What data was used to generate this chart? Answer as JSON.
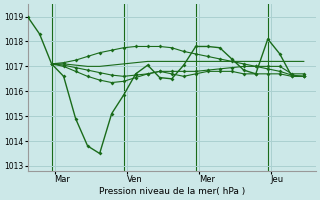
{
  "bg_color": "#cce8e8",
  "grid_color": "#aad0d0",
  "line_color": "#1a6b1a",
  "marker_color": "#1a6b1a",
  "xlabel": "Pression niveau de la mer( hPa )",
  "ylim": [
    1012.8,
    1019.5
  ],
  "yticks": [
    1013,
    1014,
    1015,
    1016,
    1017,
    1018,
    1019
  ],
  "day_labels": [
    "Mar",
    "Ven",
    "Mer",
    "Jeu"
  ],
  "vline_x": [
    8,
    32,
    56,
    80
  ],
  "total_points": 96,
  "series": [
    {
      "x": [
        0,
        4,
        8,
        12,
        16,
        20,
        24,
        28,
        32,
        36,
        40,
        44,
        48,
        52,
        56,
        60,
        64,
        68,
        72,
        76,
        80,
        84,
        88,
        92
      ],
      "y": [
        1019.0,
        1018.3,
        1017.1,
        1016.6,
        1014.9,
        1013.8,
        1013.5,
        1015.1,
        1015.85,
        1016.7,
        1017.05,
        1016.55,
        1016.5,
        1017.05,
        1017.8,
        1017.8,
        1017.75,
        1017.3,
        1016.85,
        1016.7,
        1018.1,
        1017.5,
        1016.6,
        1016.6
      ],
      "has_markers": true,
      "lw": 1.0
    },
    {
      "x": [
        8,
        12,
        16,
        20,
        24,
        28,
        32,
        36,
        40,
        44,
        48,
        52,
        56,
        60,
        64,
        68,
        72,
        76,
        80,
        84,
        88,
        92
      ],
      "y": [
        1017.1,
        1017.1,
        1017.05,
        1017.0,
        1017.0,
        1017.05,
        1017.1,
        1017.15,
        1017.2,
        1017.2,
        1017.2,
        1017.2,
        1017.2,
        1017.2,
        1017.2,
        1017.2,
        1017.2,
        1017.2,
        1017.2,
        1017.2,
        1017.2,
        1017.2
      ],
      "has_markers": false,
      "lw": 0.8
    },
    {
      "x": [
        8,
        12,
        16,
        20,
        24,
        28,
        32,
        36,
        40,
        44,
        48,
        52,
        56,
        60,
        64,
        68,
        72,
        76,
        80,
        84,
        88,
        92
      ],
      "y": [
        1017.1,
        1017.05,
        1016.95,
        1016.85,
        1016.75,
        1016.65,
        1016.6,
        1016.65,
        1016.7,
        1016.8,
        1016.8,
        1016.8,
        1016.8,
        1016.85,
        1016.9,
        1016.95,
        1017.0,
        1017.0,
        1017.0,
        1017.0,
        1016.7,
        1016.7
      ],
      "has_markers": true,
      "lw": 0.8
    },
    {
      "x": [
        8,
        12,
        16,
        20,
        24,
        28,
        32,
        36,
        40,
        44,
        48,
        52,
        56,
        60,
        64,
        68,
        72,
        76,
        80,
        84,
        88,
        92
      ],
      "y": [
        1017.1,
        1017.0,
        1016.8,
        1016.6,
        1016.45,
        1016.35,
        1016.4,
        1016.55,
        1016.7,
        1016.8,
        1016.7,
        1016.6,
        1016.7,
        1016.8,
        1016.8,
        1016.8,
        1016.7,
        1016.7,
        1016.7,
        1016.7,
        1016.6,
        1016.6
      ],
      "has_markers": true,
      "lw": 0.8
    },
    {
      "x": [
        8,
        12,
        16,
        20,
        24,
        28,
        32,
        36,
        40,
        44,
        48,
        52,
        56,
        60,
        64,
        68,
        72,
        76,
        80,
        84,
        88,
        92
      ],
      "y": [
        1017.1,
        1017.15,
        1017.25,
        1017.4,
        1017.55,
        1017.65,
        1017.75,
        1017.8,
        1017.8,
        1017.8,
        1017.75,
        1017.6,
        1017.5,
        1017.4,
        1017.3,
        1017.2,
        1017.1,
        1017.0,
        1016.9,
        1016.8,
        1016.65,
        1016.6
      ],
      "has_markers": true,
      "lw": 0.8
    }
  ]
}
